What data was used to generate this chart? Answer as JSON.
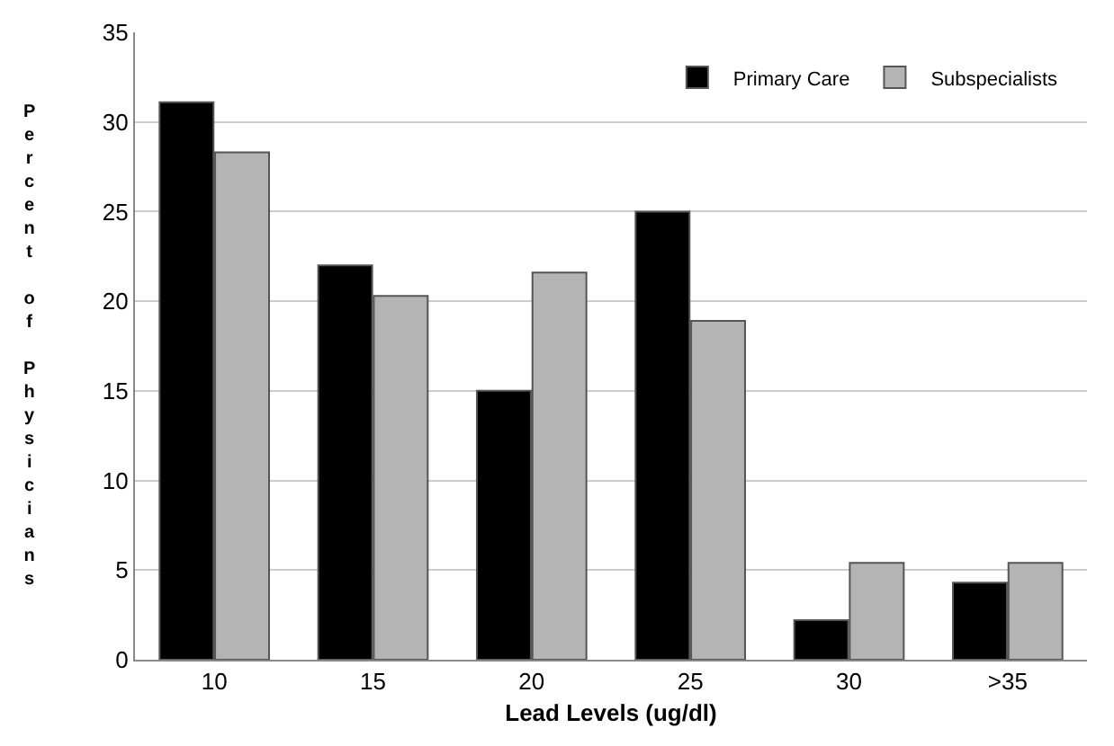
{
  "chart_data": {
    "type": "bar",
    "xlabel": "Lead Levels (ug/dl)",
    "ylabel": "Percent of Physicians",
    "categories": [
      "10",
      "15",
      "20",
      "25",
      "30",
      ">35"
    ],
    "series": [
      {
        "name": "Primary Care",
        "color": "#000000",
        "values": [
          31.1,
          22.0,
          15.0,
          25.0,
          2.2,
          4.3
        ]
      },
      {
        "name": "Subspecialists",
        "color": "#b4b4b4",
        "values": [
          28.3,
          20.3,
          21.6,
          18.9,
          5.4,
          5.4
        ]
      }
    ],
    "ylim": [
      0,
      35
    ],
    "yticks": [
      0,
      5,
      10,
      15,
      20,
      25,
      30,
      35
    ],
    "grid": "y",
    "legend": "top right"
  }
}
